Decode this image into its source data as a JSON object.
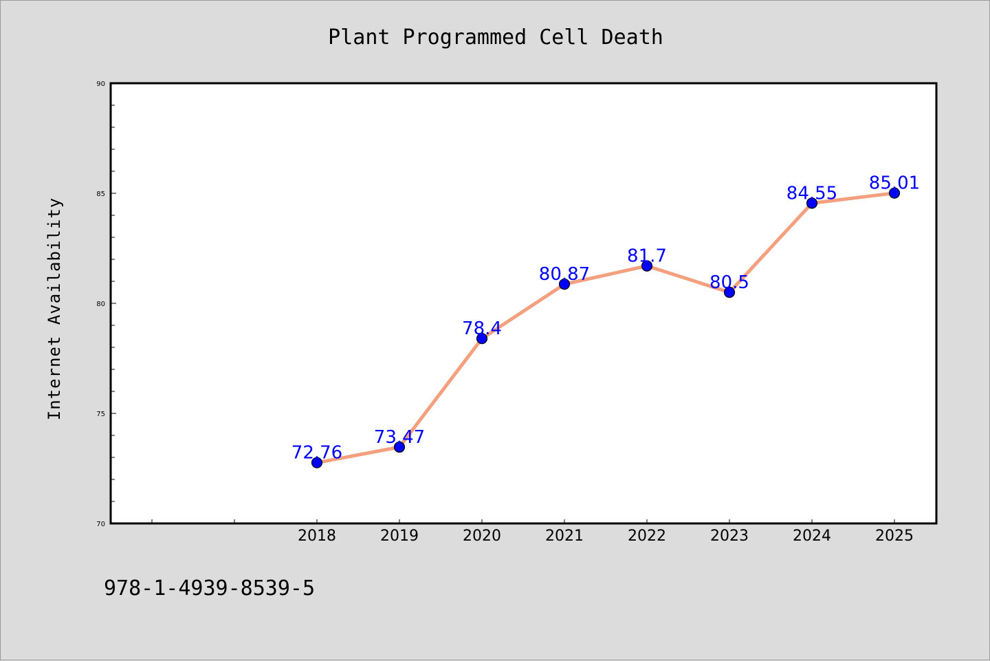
{
  "chart_data": {
    "type": "line",
    "title": "Plant Programmed Cell Death",
    "xlabel": "",
    "ylabel": "Internet Availability",
    "categories": [
      "2018",
      "2019",
      "2020",
      "2021",
      "2022",
      "2023",
      "2024",
      "2025"
    ],
    "series": [
      {
        "values": [
          72.76,
          73.47,
          78.4,
          80.87,
          81.7,
          80.5,
          84.55,
          85.01
        ],
        "labels": [
          "72.76",
          "73.47",
          "78.4",
          "80.87",
          "81.7",
          "80.5",
          "84.55",
          "85.01"
        ]
      }
    ],
    "ylim": [
      70,
      90
    ],
    "yticks": [
      "70",
      "75",
      "80",
      "85",
      "90"
    ],
    "grid": false,
    "legend": "none",
    "colors": {
      "line": "#f4a07f",
      "marker": "#0000ff",
      "label": "#0000ff",
      "plot_bg": "#ffffff",
      "page_bg": "#dcdcdc"
    }
  },
  "footer_text": "978-1-4939-8539-5"
}
